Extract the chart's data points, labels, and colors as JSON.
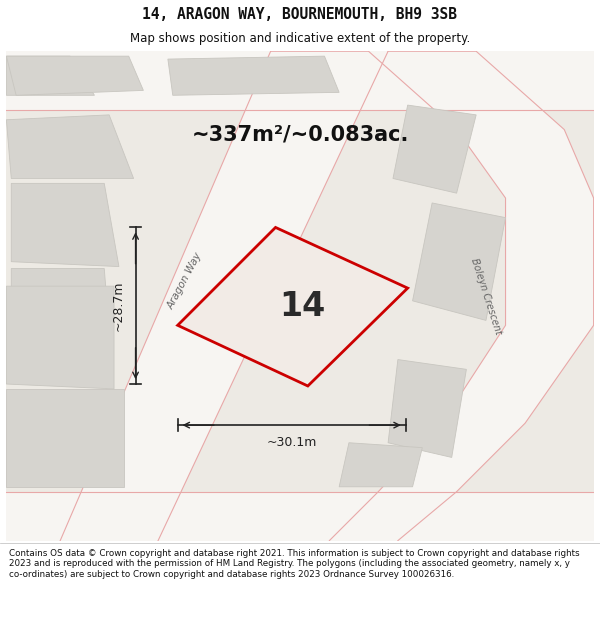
{
  "title": "14, ARAGON WAY, BOURNEMOUTH, BH9 3SB",
  "subtitle": "Map shows position and indicative extent of the property.",
  "area_text": "~337m²/~0.083ac.",
  "property_number": "14",
  "dim_width": "~30.1m",
  "dim_height": "~28.7m",
  "street1": "Aragon Way",
  "street2": "Boleyn Crescent",
  "footer": "Contains OS data © Crown copyright and database right 2021. This information is subject to Crown copyright and database rights 2023 and is reproduced with the permission of HM Land Registry. The polygons (including the associated geometry, namely x, y co-ordinates) are subject to Crown copyright and database rights 2023 Ordnance Survey 100026316.",
  "map_bg": "#edeae4",
  "road_color": "#f7f5f2",
  "property_fill": "#f2ebe6",
  "property_edge": "#cc0000",
  "block_fill": "#d6d4cf",
  "block_edge": "#c8c6c0",
  "road_line_color": "#e8a8a8",
  "text_color": "#111111",
  "dim_color": "#222222",
  "street_color": "#666666"
}
